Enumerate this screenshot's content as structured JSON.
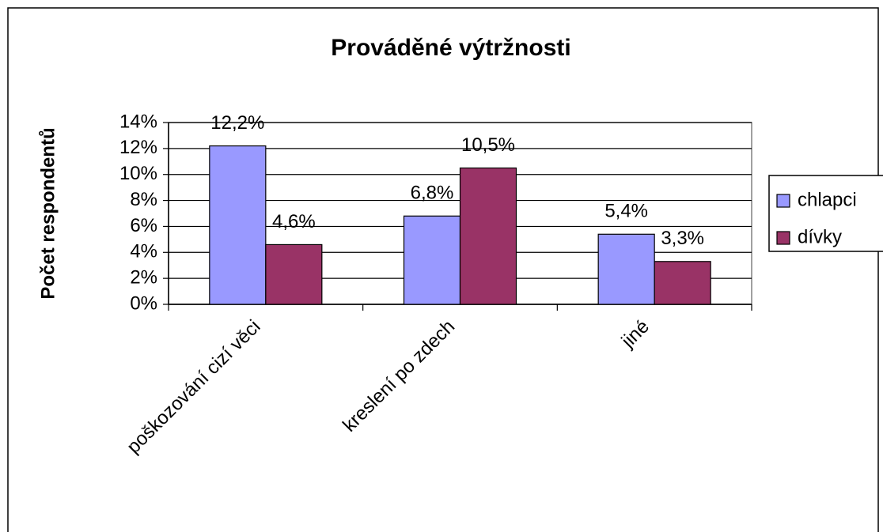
{
  "chart_data": {
    "type": "bar",
    "title": "Prováděné výtržnosti",
    "y_label": "Počet respondentů",
    "categories": [
      "poškozování cizí věci",
      "kreslení po zdech",
      "jiné"
    ],
    "series": [
      {
        "name": "chlapci",
        "color": "#9999ff",
        "values": [
          12.2,
          6.8,
          5.4
        ],
        "value_labels": [
          "12,2%",
          "6,8%",
          "5,4%"
        ]
      },
      {
        "name": "dívky",
        "color": "#993366",
        "values": [
          4.6,
          10.5,
          3.3
        ],
        "value_labels": [
          "4,6%",
          "10,5%",
          "3,3%"
        ]
      }
    ],
    "ylim": [
      0,
      14
    ],
    "yticks": [
      {
        "value": 0,
        "label": "0%"
      },
      {
        "value": 2,
        "label": "2%"
      },
      {
        "value": 4,
        "label": "4%"
      },
      {
        "value": 6,
        "label": "6%"
      },
      {
        "value": 8,
        "label": "8%"
      },
      {
        "value": 10,
        "label": "10%"
      },
      {
        "value": 12,
        "label": "12%"
      },
      {
        "value": 14,
        "label": "14%"
      }
    ],
    "grid": true,
    "legend": "right"
  }
}
